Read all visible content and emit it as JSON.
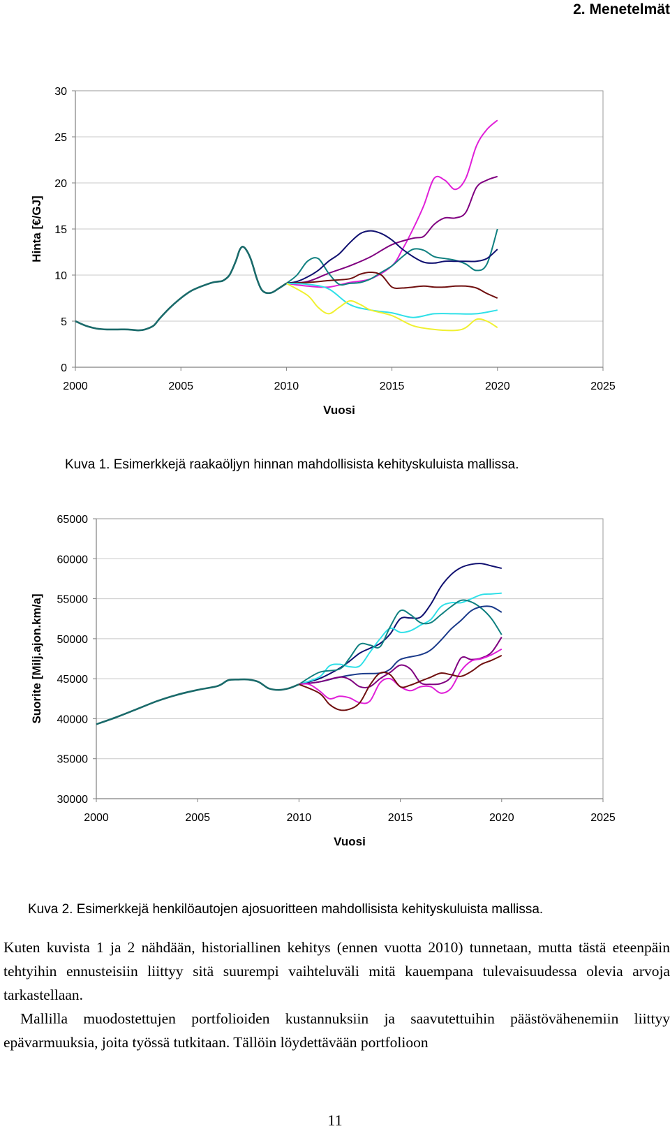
{
  "header": {
    "section": "2. Menetelmät"
  },
  "figures": [
    {
      "caption": "Kuva 1.  Esimerkkejä raakaöljyn hinnan mahdollisista kehityskuluista mallissa."
    },
    {
      "caption": "Kuva 2. Esimerkkejä henkilöautojen ajosuoritteen mahdollisista kehityskuluista mallissa."
    }
  ],
  "body": {
    "paragraph1": "Kuten kuvista 1 ja 2 nähdään, historiallinen kehitys (ennen vuotta 2010) tunnetaan, mutta tästä eteenpäin tehtyihin ennusteisiin liittyy sitä suurempi vaihteluväli mitä kauempana tulevaisuudessa olevia arvoja tarkastellaan.",
    "paragraph2": "Mallilla muodostettujen portfolioiden kustannuksiin ja saavutettuihin päästövähenemiin liittyy epävarmuuksia, joita työssä tutkitaan. Tällöin löydettävään portfolioon"
  },
  "page_number": "11",
  "chart_data": [
    {
      "type": "line",
      "title": "",
      "xlabel": "Vuosi",
      "ylabel": "Hinta [€/GJ]",
      "xlim": [
        2000,
        2025
      ],
      "ylim": [
        0,
        30
      ],
      "xticks": [
        2000,
        2005,
        2010,
        2015,
        2020,
        2025
      ],
      "yticks": [
        0,
        5,
        10,
        15,
        20,
        25,
        30
      ],
      "grid": "horizontal",
      "history": {
        "color": "#1a6a6a",
        "x": [
          2000,
          2000.5,
          2001,
          2001.5,
          2002,
          2002.5,
          2003,
          2003.3,
          2003.7,
          2004,
          2004.5,
          2005,
          2005.5,
          2006,
          2006.5,
          2006.8,
          2007,
          2007.3,
          2007.6,
          2007.8,
          2008,
          2008.3,
          2008.6,
          2008.8,
          2009,
          2009.3,
          2009.6,
          2010
        ],
        "y": [
          5,
          4.5,
          4.2,
          4.1,
          4.1,
          4.1,
          4.0,
          4.1,
          4.5,
          5.3,
          6.5,
          7.5,
          8.3,
          8.8,
          9.2,
          9.3,
          9.4,
          10.0,
          11.5,
          12.8,
          13.0,
          11.8,
          9.6,
          8.5,
          8.1,
          8.1,
          8.5,
          9.1
        ]
      },
      "series": [
        {
          "name": "magenta",
          "color": "#e020d8",
          "x": [
            2010,
            2011,
            2012,
            2013,
            2014,
            2015,
            2015.5,
            2016,
            2016.5,
            2017,
            2017.5,
            2018,
            2018.5,
            2019,
            2019.5,
            2020
          ],
          "y": [
            9.1,
            8.8,
            8.7,
            9.2,
            9.6,
            11.0,
            12.8,
            15.0,
            17.5,
            20.5,
            20.3,
            19.3,
            20.5,
            24.0,
            25.8,
            26.8
          ]
        },
        {
          "name": "purple",
          "color": "#800080",
          "x": [
            2010,
            2011,
            2012,
            2013,
            2014,
            2015,
            2016,
            2016.5,
            2017,
            2017.5,
            2018,
            2018.5,
            2019,
            2019.5,
            2020
          ],
          "y": [
            9.1,
            9.3,
            10.2,
            11.0,
            12.0,
            13.3,
            14.0,
            14.2,
            15.5,
            16.2,
            16.2,
            16.8,
            19.5,
            20.3,
            20.7
          ]
        },
        {
          "name": "teal",
          "color": "#108080",
          "x": [
            2010,
            2010.5,
            2011,
            2011.5,
            2012,
            2012.5,
            2013,
            2013.5,
            2014,
            2014.5,
            2015,
            2015.5,
            2016,
            2016.5,
            2017,
            2017.5,
            2018,
            2018.5,
            2019,
            2019.5,
            2020
          ],
          "y": [
            9.1,
            10.0,
            11.5,
            11.8,
            10.2,
            9.0,
            9.1,
            9.2,
            9.6,
            10.3,
            11.0,
            12.0,
            12.8,
            12.7,
            12.0,
            11.8,
            11.6,
            11.2,
            10.5,
            11.2,
            15.0
          ]
        },
        {
          "name": "navy",
          "color": "#101070",
          "x": [
            2010,
            2010.5,
            2011,
            2011.5,
            2012,
            2012.5,
            2013,
            2013.5,
            2014,
            2014.5,
            2015,
            2015.5,
            2016,
            2016.5,
            2017,
            2017.5,
            2018,
            2018.5,
            2019,
            2019.5,
            2020
          ],
          "y": [
            9.1,
            9.3,
            9.8,
            10.5,
            11.5,
            12.3,
            13.5,
            14.5,
            14.8,
            14.5,
            13.8,
            12.8,
            12.0,
            11.4,
            11.3,
            11.5,
            11.5,
            11.5,
            11.5,
            11.8,
            12.8
          ]
        },
        {
          "name": "darkred",
          "color": "#701010",
          "x": [
            2010,
            2011,
            2012,
            2013,
            2013.5,
            2014,
            2014.5,
            2015,
            2015.5,
            2016,
            2016.5,
            2017,
            2017.5,
            2018,
            2018.5,
            2019,
            2019.5,
            2020
          ],
          "y": [
            9.1,
            9.2,
            9.4,
            9.6,
            10.1,
            10.3,
            10.0,
            8.7,
            8.6,
            8.7,
            8.8,
            8.7,
            8.7,
            8.8,
            8.8,
            8.6,
            8.0,
            7.5
          ]
        },
        {
          "name": "cyan",
          "color": "#30e0e8",
          "x": [
            2010,
            2011,
            2012,
            2013,
            2014,
            2015,
            2016,
            2017,
            2018,
            2019,
            2020
          ],
          "y": [
            9.1,
            9.0,
            8.5,
            6.8,
            6.2,
            5.9,
            5.4,
            5.8,
            5.8,
            5.8,
            6.2
          ]
        },
        {
          "name": "yellow",
          "color": "#f0f030",
          "x": [
            2010,
            2011,
            2011.5,
            2012,
            2012.5,
            2013,
            2013.5,
            2014,
            2015,
            2016,
            2017,
            2018,
            2018.5,
            2019,
            2019.5,
            2020
          ],
          "y": [
            9.1,
            7.8,
            6.5,
            5.8,
            6.5,
            7.2,
            6.8,
            6.2,
            5.6,
            4.5,
            4.1,
            4.0,
            4.3,
            5.2,
            5.0,
            4.3
          ]
        }
      ]
    },
    {
      "type": "line",
      "title": "",
      "xlabel": "Vuosi",
      "ylabel": "Suorite [Milj.ajon.km/a]",
      "xlim": [
        2000,
        2025
      ],
      "ylim": [
        30000,
        65000
      ],
      "xticks": [
        2000,
        2005,
        2010,
        2015,
        2020,
        2025
      ],
      "yticks": [
        30000,
        35000,
        40000,
        45000,
        50000,
        55000,
        60000,
        65000
      ],
      "grid": "horizontal",
      "history": {
        "color": "#1a6a6a",
        "x": [
          2000,
          2001,
          2002,
          2003,
          2004,
          2005,
          2006,
          2006.5,
          2007,
          2007.5,
          2008,
          2008.5,
          2009,
          2009.5,
          2010
        ],
        "y": [
          39300,
          40200,
          41200,
          42200,
          43000,
          43600,
          44100,
          44800,
          44900,
          44900,
          44600,
          43800,
          43600,
          43800,
          44300
        ]
      },
      "series": [
        {
          "name": "navy",
          "color": "#101070",
          "x": [
            2010,
            2011,
            2012,
            2012.5,
            2013,
            2013.5,
            2014,
            2014.5,
            2015,
            2015.5,
            2016,
            2016.5,
            2017,
            2017.5,
            2018,
            2018.5,
            2019,
            2019.5,
            2020
          ],
          "y": [
            44300,
            45000,
            46300,
            47200,
            48200,
            48800,
            49400,
            50600,
            52500,
            52600,
            52700,
            54300,
            56500,
            58000,
            58900,
            59300,
            59400,
            59100,
            58800
          ]
        },
        {
          "name": "cyan",
          "color": "#30e0e8",
          "x": [
            2010,
            2011,
            2011.5,
            2012,
            2012.5,
            2013,
            2013.5,
            2014,
            2014.5,
            2015,
            2015.5,
            2016,
            2016.5,
            2017,
            2017.5,
            2018,
            2018.5,
            2019,
            2019.5,
            2020
          ],
          "y": [
            44300,
            45200,
            46600,
            46800,
            46500,
            46600,
            48300,
            50000,
            51300,
            50800,
            51000,
            51700,
            52400,
            54000,
            54500,
            54500,
            55000,
            55500,
            55600,
            55700
          ]
        },
        {
          "name": "teal",
          "color": "#108080",
          "x": [
            2010,
            2011,
            2012,
            2012.5,
            2013,
            2013.5,
            2014,
            2014.5,
            2015,
            2015.5,
            2016,
            2016.5,
            2017,
            2017.5,
            2018,
            2018.5,
            2019,
            2019.5,
            2020
          ],
          "y": [
            44300,
            45800,
            46200,
            47600,
            49300,
            49200,
            49000,
            51500,
            53500,
            53000,
            52000,
            52000,
            53000,
            54000,
            54800,
            54600,
            53800,
            52500,
            50500
          ]
        },
        {
          "name": "navy2",
          "color": "#1a3a8a",
          "x": [
            2010,
            2011,
            2012,
            2013,
            2014,
            2014.5,
            2015,
            2016,
            2016.5,
            2017,
            2017.5,
            2018,
            2018.5,
            2019,
            2019.5,
            2020
          ],
          "y": [
            44300,
            44600,
            45200,
            45600,
            45700,
            46200,
            47400,
            48000,
            48600,
            49800,
            51200,
            52300,
            53500,
            54000,
            54000,
            53300
          ]
        },
        {
          "name": "purple",
          "color": "#800080",
          "x": [
            2010,
            2011,
            2012,
            2012.5,
            2013,
            2013.5,
            2014,
            2014.5,
            2015,
            2015.5,
            2016,
            2016.5,
            2017,
            2017.5,
            2018,
            2018.5,
            2019,
            2019.5,
            2020
          ],
          "y": [
            44300,
            44600,
            45200,
            44900,
            44000,
            44000,
            45000,
            45800,
            46700,
            46200,
            44500,
            44300,
            44400,
            45200,
            47600,
            47400,
            47600,
            48300,
            50200
          ]
        },
        {
          "name": "magenta",
          "color": "#e020d8",
          "x": [
            2010,
            2010.5,
            2011,
            2011.5,
            2012,
            2012.5,
            2013,
            2013.5,
            2014,
            2014.5,
            2015,
            2015.5,
            2016,
            2016.5,
            2017,
            2017.5,
            2018,
            2018.5,
            2019,
            2019.5,
            2020
          ],
          "y": [
            44300,
            44300,
            43500,
            42500,
            42800,
            42600,
            42000,
            42200,
            44500,
            45000,
            44000,
            43500,
            44000,
            44000,
            43200,
            43800,
            46000,
            47200,
            47500,
            48000,
            48700
          ]
        },
        {
          "name": "darkred",
          "color": "#701010",
          "x": [
            2010,
            2011,
            2011.5,
            2012,
            2012.5,
            2013,
            2013.5,
            2014,
            2014.5,
            2015,
            2015.5,
            2016,
            2016.5,
            2017,
            2017.5,
            2018,
            2018.5,
            2019,
            2019.5,
            2020
          ],
          "y": [
            44300,
            43200,
            41800,
            41100,
            41200,
            42000,
            44200,
            45700,
            45500,
            44000,
            44200,
            44700,
            45200,
            45700,
            45500,
            45300,
            45900,
            46800,
            47300,
            47900
          ]
        }
      ]
    }
  ]
}
